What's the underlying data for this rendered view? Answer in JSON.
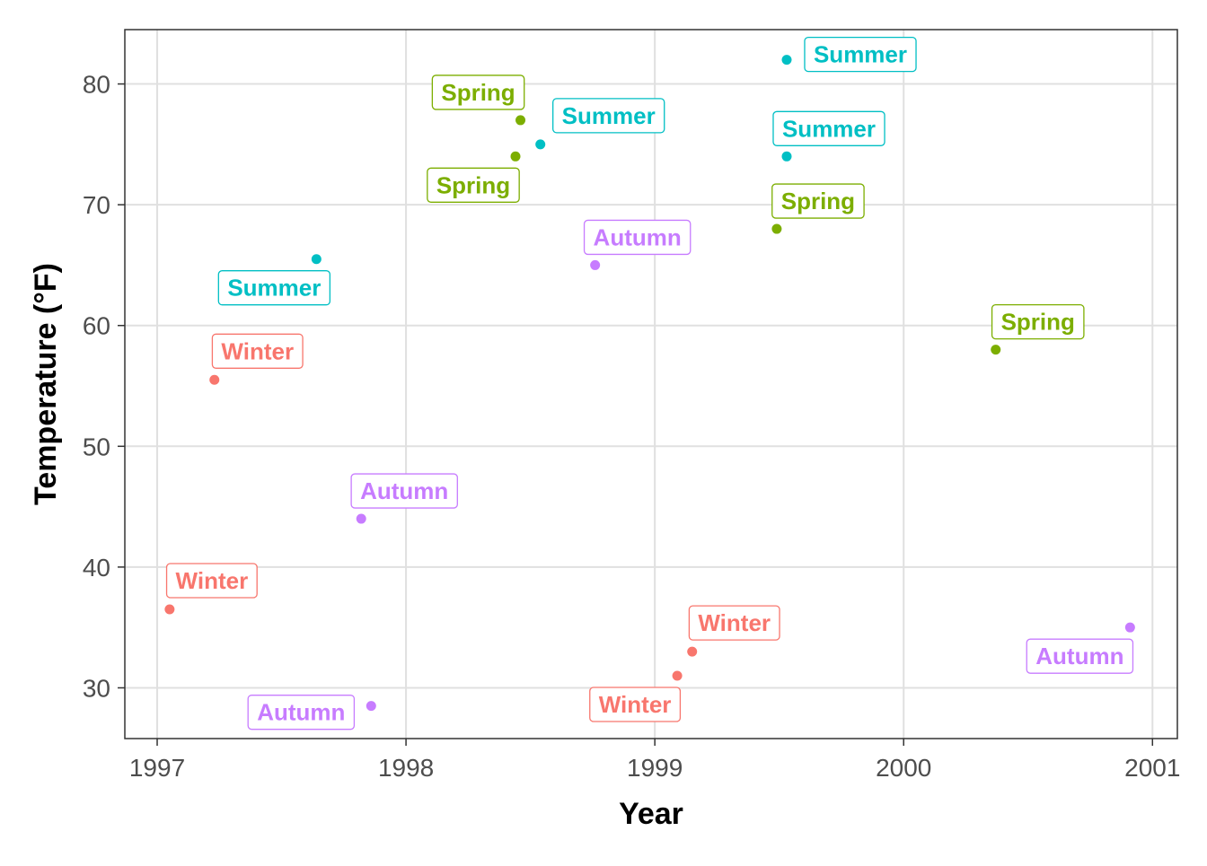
{
  "chart_data": {
    "type": "scatter",
    "title": "",
    "xlabel": "Year",
    "ylabel": "Temperature (°F)",
    "xlim": [
      1996.87,
      2001.1
    ],
    "ylim": [
      25.8,
      84.5
    ],
    "xticks": [
      1997,
      1998,
      1999,
      2000,
      2001
    ],
    "yticks": [
      30,
      40,
      50,
      60,
      70,
      80
    ],
    "grid": true,
    "legend": "none",
    "colors": {
      "Winter": "#F8766D",
      "Spring": "#7CAE00",
      "Summer": "#00BFC4",
      "Autumn": "#C77CFF"
    },
    "points": [
      {
        "x": 1997.05,
        "y": 36.5,
        "season": "Winter"
      },
      {
        "x": 1997.23,
        "y": 55.5,
        "season": "Winter"
      },
      {
        "x": 1997.64,
        "y": 65.5,
        "season": "Summer"
      },
      {
        "x": 1997.82,
        "y": 44,
        "season": "Autumn"
      },
      {
        "x": 1997.86,
        "y": 28.5,
        "season": "Autumn"
      },
      {
        "x": 1998.44,
        "y": 74,
        "season": "Spring"
      },
      {
        "x": 1998.46,
        "y": 77,
        "season": "Spring"
      },
      {
        "x": 1998.54,
        "y": 75,
        "season": "Summer"
      },
      {
        "x": 1998.76,
        "y": 65,
        "season": "Autumn"
      },
      {
        "x": 1999.09,
        "y": 31,
        "season": "Winter"
      },
      {
        "x": 1999.15,
        "y": 33,
        "season": "Winter"
      },
      {
        "x": 1999.49,
        "y": 68,
        "season": "Spring"
      },
      {
        "x": 1999.53,
        "y": 74,
        "season": "Summer"
      },
      {
        "x": 1999.53,
        "y": 82,
        "season": "Summer"
      },
      {
        "x": 2000.37,
        "y": 58,
        "season": "Spring"
      },
      {
        "x": 2000.91,
        "y": 35,
        "season": "Autumn"
      }
    ]
  }
}
